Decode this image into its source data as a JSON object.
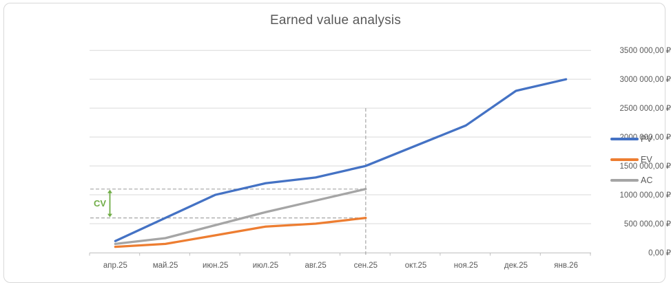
{
  "title": "Earned value analysis",
  "chart_data": {
    "type": "line",
    "title": "Earned value analysis",
    "categories": [
      "апр.25",
      "май.25",
      "июн.25",
      "июл.25",
      "авг.25",
      "сен.25",
      "окт.25",
      "ноя.25",
      "дек.25",
      "янв.26"
    ],
    "series": [
      {
        "name": "PV",
        "color": "#4472C4",
        "values": [
          200000,
          600000,
          1000000,
          1200000,
          1300000,
          1500000,
          1850000,
          2200000,
          2800000,
          3000000
        ]
      },
      {
        "name": "EV",
        "color": "#ED7D31",
        "values": [
          100000,
          150000,
          300000,
          450000,
          500000,
          600000,
          null,
          null,
          null,
          null
        ]
      },
      {
        "name": "AC",
        "color": "#A5A5A5",
        "values": [
          150000,
          250000,
          475000,
          700000,
          900000,
          1100000,
          null,
          null,
          null,
          null
        ]
      }
    ],
    "ylim": [
      0,
      3500000
    ],
    "ytick_step": 500000,
    "ytick_labels": [
      "0,00 ₽",
      "500 000,00 ₽",
      "1000 000,00 ₽",
      "1500 000,00 ₽",
      "2000 000,00 ₽",
      "2500 000,00 ₽",
      "3000 000,00 ₽",
      "3500 000,00 ₽"
    ],
    "grid": true,
    "legend_position": "right",
    "annotations": {
      "cv_label": "CV",
      "cv_color": "#70AD47",
      "cv_between_values": [
        600000,
        1100000
      ],
      "status_date_category": "сен.25",
      "dash_color": "#A6A6A6"
    }
  },
  "colors": {
    "axis_text": "#595959",
    "gridline": "#D9D9D9",
    "axis_line": "#BFBFBF",
    "border": "#D8D8D8",
    "background": "#FFFFFF"
  }
}
